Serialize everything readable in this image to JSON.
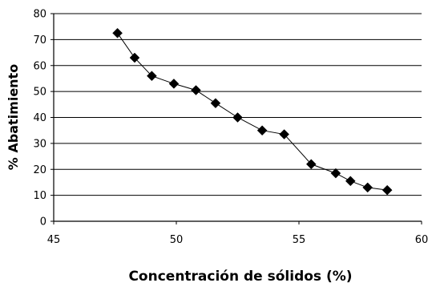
{
  "chart_data": {
    "type": "line",
    "title": "",
    "xlabel": "Concentración de sólidos (%)",
    "ylabel": "% Abatimiento",
    "xlim": [
      45,
      60
    ],
    "ylim": [
      0,
      80
    ],
    "x_ticks": [
      45,
      50,
      55,
      60
    ],
    "y_ticks": [
      0,
      10,
      20,
      30,
      40,
      50,
      60,
      70,
      80
    ],
    "grid": "horizontal",
    "legend": "none",
    "series": [
      {
        "marker": "diamond",
        "color": "#000000",
        "x": [
          47.6,
          48.3,
          49.0,
          49.9,
          50.8,
          51.6,
          52.5,
          53.5,
          54.4,
          55.5,
          56.5,
          57.1,
          57.8,
          58.6
        ],
        "y": [
          72.5,
          63.0,
          56.0,
          53.0,
          50.5,
          45.5,
          40.0,
          35.0,
          33.5,
          22.0,
          18.5,
          15.5,
          13.0,
          12.0
        ]
      }
    ]
  }
}
